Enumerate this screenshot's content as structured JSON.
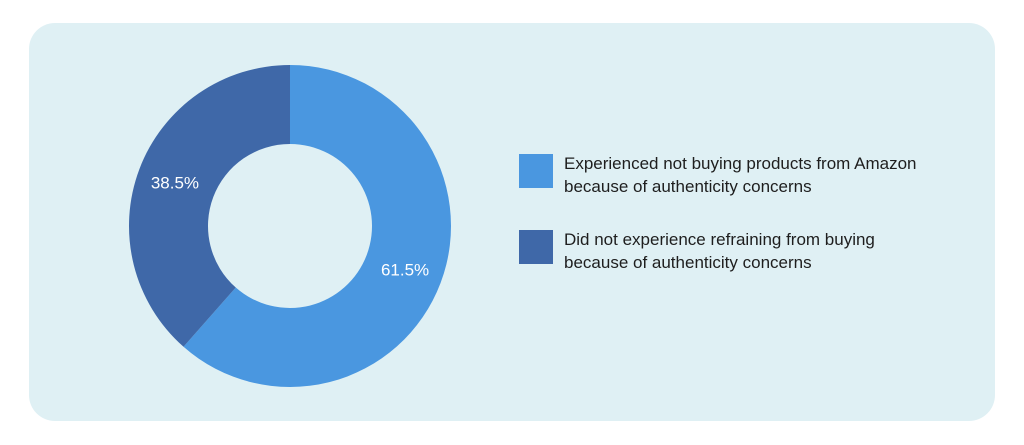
{
  "chart_data": {
    "type": "donut",
    "slices": [
      {
        "label": "Experienced not buying products from Amazon because of authenticity concerns",
        "value": 61.5,
        "value_label": "61.5%",
        "color": "#4a97e0"
      },
      {
        "label": "Did not experience refraining from buying because of authenticity concerns",
        "value": 38.5,
        "value_label": "38.5%",
        "color": "#3f68a8"
      }
    ],
    "start_angle_deg": 0,
    "direction": "clockwise",
    "legend_position": "right"
  }
}
